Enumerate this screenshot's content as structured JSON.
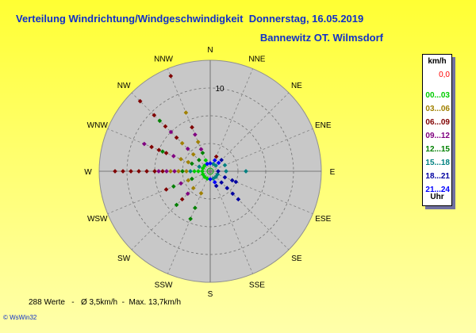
{
  "header": {
    "title": "Verteilung Windrichtung/Windgeschwindigkeit  Donnerstag, 16.05.2019",
    "station": "Bannewitz OT. Wilmsdorf"
  },
  "legend": {
    "unit": "km/h",
    "calm": {
      "label": "0,0",
      "color": "#ff0000"
    },
    "classes": [
      {
        "label": "00...03",
        "color": "#00cc00"
      },
      {
        "label": "03...06",
        "color": "#a08000"
      },
      {
        "label": "06...09",
        "color": "#800000"
      },
      {
        "label": "09...12",
        "color": "#800080"
      },
      {
        "label": "12...15",
        "color": "#008000"
      },
      {
        "label": "15...18",
        "color": "#008080"
      },
      {
        "label": "18...21",
        "color": "#0000a0"
      },
      {
        "label": "21...24",
        "color": "#0000ff"
      }
    ],
    "footer_label": "Uhr"
  },
  "footer": {
    "stats": "288 Werte   -   Ø 3,5km/h  -  Max. 13,7km/h",
    "software": "© WsWin32"
  },
  "chart_data": {
    "type": "scatter",
    "polar": true,
    "directions": [
      "N",
      "NNE",
      "NE",
      "ENE",
      "E",
      "ESE",
      "SE",
      "SSE",
      "S",
      "SSW",
      "SW",
      "WSW",
      "W",
      "WNW",
      "NW",
      "NNW"
    ],
    "radial_tick": "10",
    "r_max": 14,
    "grid": true,
    "series": [
      {
        "name": "00...03",
        "color": "#00cc00",
        "points": [
          [
            270,
            1
          ],
          [
            270,
            2
          ],
          [
            247.5,
            1
          ],
          [
            292.5,
            1
          ],
          [
            225,
            1
          ],
          [
            202.5,
            1
          ],
          [
            315,
            1
          ],
          [
            337.5,
            1.5
          ],
          [
            270,
            1.5
          ]
        ]
      },
      {
        "name": "03...06",
        "color": "#a08000",
        "points": [
          [
            270,
            3
          ],
          [
            270,
            4
          ],
          [
            292.5,
            3
          ],
          [
            292.5,
            4
          ],
          [
            315,
            3
          ],
          [
            315,
            5
          ],
          [
            337.5,
            4
          ],
          [
            337.5,
            8
          ],
          [
            247.5,
            3
          ],
          [
            225,
            3
          ],
          [
            202.5,
            3
          ],
          [
            270,
            5
          ]
        ]
      },
      {
        "name": "06...09",
        "color": "#800000",
        "points": [
          [
            270,
            7
          ],
          [
            270,
            8
          ],
          [
            270,
            9
          ],
          [
            270,
            10
          ],
          [
            270,
            11
          ],
          [
            270,
            12
          ],
          [
            292.5,
            6
          ],
          [
            292.5,
            7
          ],
          [
            292.5,
            8
          ],
          [
            315,
            6
          ],
          [
            315,
            8
          ],
          [
            315,
            10
          ],
          [
            315,
            12.5
          ],
          [
            337.5,
            6
          ],
          [
            337.5,
            13
          ],
          [
            247.5,
            6
          ],
          [
            225,
            5
          ],
          [
            22.5,
            2
          ],
          [
            270,
            6
          ]
        ]
      },
      {
        "name": "09...12",
        "color": "#800080",
        "points": [
          [
            270,
            4.5
          ],
          [
            270,
            5.5
          ],
          [
            270,
            6.5
          ],
          [
            292.5,
            5
          ],
          [
            292.5,
            9
          ],
          [
            315,
            4
          ],
          [
            315,
            7
          ],
          [
            337.5,
            3
          ],
          [
            337.5,
            5
          ],
          [
            247.5,
            4
          ],
          [
            225,
            4
          ]
        ]
      },
      {
        "name": "12...15",
        "color": "#008000",
        "points": [
          [
            270,
            3.5
          ],
          [
            292.5,
            2.5
          ],
          [
            292.5,
            6.5
          ],
          [
            315,
            2
          ],
          [
            315,
            9
          ],
          [
            247.5,
            5
          ],
          [
            225,
            6
          ],
          [
            202.5,
            5
          ],
          [
            202.5,
            6.5
          ],
          [
            337.5,
            2.5
          ],
          [
            247.5,
            2.5
          ]
        ]
      },
      {
        "name": "15...18",
        "color": "#008080",
        "points": [
          [
            67.5,
            2
          ],
          [
            90,
            2
          ],
          [
            90,
            4.5
          ],
          [
            112.5,
            1
          ],
          [
            135,
            1
          ],
          [
            157.5,
            1
          ],
          [
            45,
            1
          ],
          [
            22.5,
            1
          ],
          [
            270,
            2.5
          ],
          [
            292.5,
            1.5
          ]
        ]
      },
      {
        "name": "18...21",
        "color": "#0000a0",
        "points": [
          [
            135,
            2
          ],
          [
            135,
            3
          ],
          [
            135,
            4
          ],
          [
            135,
            5
          ],
          [
            112.5,
            2
          ],
          [
            112.5,
            3
          ],
          [
            112.5,
            3.5
          ],
          [
            157.5,
            2
          ],
          [
            90,
            1
          ],
          [
            45,
            2
          ]
        ]
      },
      {
        "name": "21...24",
        "color": "#0000ff",
        "points": [
          [
            22.5,
            1.5
          ],
          [
            45,
            1.5
          ],
          [
            337.5,
            1
          ],
          [
            0,
            1
          ],
          [
            157.5,
            1.5
          ],
          [
            180,
            1
          ]
        ]
      }
    ]
  }
}
